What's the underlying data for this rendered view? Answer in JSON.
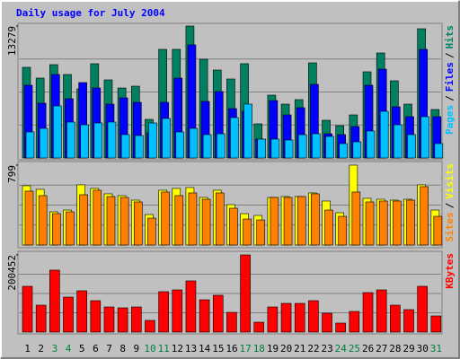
{
  "chart_data": [
    {
      "type": "bar",
      "title": "Daily usage for July 2004",
      "ylim": [
        0,
        13279
      ],
      "yticks": [
        13279
      ],
      "legend_separator": "/",
      "series": [
        {
          "name": "Hits",
          "color": "#008060",
          "values": [
            9124,
            8040,
            9394,
            8401,
            6955,
            9485,
            7859,
            7046,
            7226,
            3884,
            10930,
            10930,
            13279,
            9936,
            8852,
            7949,
            9485,
            3433,
            6323,
            5420,
            5871,
            9575,
            3794,
            3252,
            4336,
            8672,
            10569,
            7768,
            5420,
            13008,
            4878
          ]
        },
        {
          "name": "Files",
          "color": "#0000ff",
          "values": [
            7317,
            5510,
            8401,
            5962,
            7588,
            7046,
            5420,
            6052,
            5600,
            2529,
            5600,
            8040,
            11382,
            5691,
            6684,
            4968,
            4697,
            1897,
            5781,
            4336,
            5058,
            7407,
            2439,
            2349,
            3162,
            7317,
            8943,
            5149,
            4155,
            10930,
            4155
          ]
        },
        {
          "name": "Pages",
          "color": "#00c0ff",
          "values": [
            2620,
            2981,
            5239,
            3613,
            3342,
            3523,
            3613,
            2349,
            2258,
            3523,
            3975,
            2620,
            2981,
            2349,
            2439,
            4065,
            5420,
            1897,
            1897,
            1807,
            2349,
            2439,
            2168,
            1445,
            1626,
            2710,
            4697,
            3342,
            2349,
            4155,
            1445
          ]
        }
      ]
    },
    {
      "type": "bar",
      "ylim": [
        0,
        799
      ],
      "yticks": [
        799
      ],
      "legend_separator": "/",
      "series": [
        {
          "name": "Visits",
          "color": "#ffff00",
          "values": [
            593,
            557,
            332,
            350,
            602,
            566,
            512,
            494,
            449,
            305,
            548,
            566,
            575,
            476,
            548,
            404,
            314,
            296,
            476,
            485,
            485,
            521,
            440,
            323,
            799,
            467,
            458,
            449,
            458,
            602,
            350
          ]
        },
        {
          "name": "Sites",
          "color": "#ff8000",
          "values": [
            539,
            494,
            314,
            332,
            503,
            548,
            485,
            476,
            431,
            269,
            530,
            494,
            521,
            458,
            521,
            368,
            260,
            251,
            476,
            476,
            485,
            512,
            350,
            287,
            530,
            431,
            440,
            440,
            449,
            584,
            287
          ]
        }
      ]
    },
    {
      "type": "bar",
      "ylim": [
        0,
        200452
      ],
      "yticks": [
        200452
      ],
      "categories": [
        "1",
        "2",
        "3",
        "4",
        "5",
        "6",
        "7",
        "8",
        "9",
        "10",
        "11",
        "12",
        "13",
        "14",
        "15",
        "16",
        "17",
        "18",
        "19",
        "20",
        "21",
        "22",
        "23",
        "24",
        "25",
        "26",
        "27",
        "28",
        "29",
        "30",
        "31"
      ],
      "category_colors": [
        "#000000",
        "#000000",
        "#008040",
        "#008040",
        "#000000",
        "#000000",
        "#000000",
        "#000000",
        "#000000",
        "#008040",
        "#008040",
        "#000000",
        "#000000",
        "#000000",
        "#000000",
        "#000000",
        "#008040",
        "#008040",
        "#000000",
        "#000000",
        "#000000",
        "#000000",
        "#000000",
        "#008040",
        "#008040",
        "#000000",
        "#000000",
        "#000000",
        "#000000",
        "#000000",
        "#008040"
      ],
      "series": [
        {
          "name": "KBytes",
          "color": "#ff0000",
          "values": [
            118881,
            69930,
            160839,
            90909,
            107226,
            81585,
            65268,
            62937,
            65268,
            30303,
            104895,
            109557,
            132867,
            83916,
            95571,
            51282,
            200452,
            25641,
            65268,
            74592,
            74592,
            81585,
            48951,
            23310,
            53613,
            102564,
            109557,
            69930,
            58275,
            118881,
            41958
          ]
        }
      ]
    }
  ]
}
